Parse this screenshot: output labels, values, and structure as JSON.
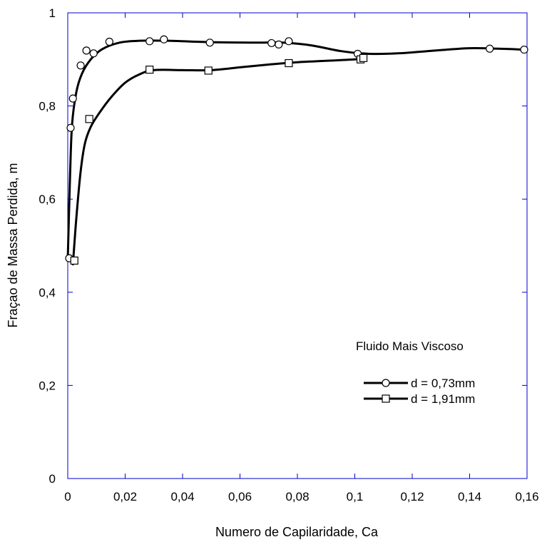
{
  "chart_data": {
    "type": "scatter",
    "xlabel": "Numero de Capilaridade, Ca",
    "ylabel": "Fraçao de Massa Perdida, m",
    "xlim": [
      0,
      0.16
    ],
    "ylim": [
      0,
      1
    ],
    "x_ticks": [
      0,
      0.02,
      0.04,
      0.06,
      0.08,
      0.1,
      0.12,
      0.14,
      0.16
    ],
    "x_tick_labels": [
      "0",
      "0,02",
      "0,04",
      "0,06",
      "0,08",
      "0,1",
      "0,12",
      "0,14",
      "0,16"
    ],
    "y_ticks": [
      0,
      0.2,
      0.4,
      0.6,
      0.8,
      1
    ],
    "y_tick_labels": [
      "0",
      "0,2",
      "0,4",
      "0,6",
      "0,8",
      "1"
    ],
    "grid": false,
    "legend_title": "Fluido Mais Viscoso",
    "legend_position": "lower-right",
    "series": [
      {
        "name": "d = 0,73mm",
        "marker": "circle",
        "color": "#000000",
        "points": [
          [
            0.0005,
            0.473
          ],
          [
            0.001,
            0.753
          ],
          [
            0.0018,
            0.816
          ],
          [
            0.0045,
            0.887
          ],
          [
            0.0065,
            0.919
          ],
          [
            0.009,
            0.913
          ],
          [
            0.0145,
            0.938
          ],
          [
            0.0285,
            0.939
          ],
          [
            0.0335,
            0.943
          ],
          [
            0.0495,
            0.936
          ],
          [
            0.071,
            0.935
          ],
          [
            0.0735,
            0.932
          ],
          [
            0.077,
            0.939
          ],
          [
            0.101,
            0.912
          ],
          [
            0.147,
            0.923
          ],
          [
            0.159,
            0.921
          ]
        ],
        "curve": [
          [
            0,
            0.47
          ],
          [
            0.0008,
            0.65
          ],
          [
            0.0015,
            0.76
          ],
          [
            0.003,
            0.83
          ],
          [
            0.005,
            0.87
          ],
          [
            0.008,
            0.9
          ],
          [
            0.012,
            0.922
          ],
          [
            0.018,
            0.936
          ],
          [
            0.025,
            0.94
          ],
          [
            0.035,
            0.94
          ],
          [
            0.05,
            0.937
          ],
          [
            0.065,
            0.936
          ],
          [
            0.075,
            0.936
          ],
          [
            0.085,
            0.93
          ],
          [
            0.095,
            0.918
          ],
          [
            0.105,
            0.912
          ],
          [
            0.115,
            0.913
          ],
          [
            0.13,
            0.92
          ],
          [
            0.14,
            0.924
          ],
          [
            0.15,
            0.923
          ],
          [
            0.159,
            0.921
          ]
        ]
      },
      {
        "name": "d = 1,91mm",
        "marker": "square",
        "color": "#000000",
        "points": [
          [
            0.0023,
            0.468
          ],
          [
            0.0075,
            0.772
          ],
          [
            0.0285,
            0.878
          ],
          [
            0.049,
            0.876
          ],
          [
            0.077,
            0.892
          ],
          [
            0.102,
            0.9
          ],
          [
            0.103,
            0.903
          ]
        ],
        "curve": [
          [
            0.0018,
            0.46
          ],
          [
            0.003,
            0.56
          ],
          [
            0.0045,
            0.66
          ],
          [
            0.006,
            0.72
          ],
          [
            0.008,
            0.755
          ],
          [
            0.011,
            0.785
          ],
          [
            0.015,
            0.818
          ],
          [
            0.02,
            0.85
          ],
          [
            0.025,
            0.868
          ],
          [
            0.03,
            0.877
          ],
          [
            0.04,
            0.877
          ],
          [
            0.05,
            0.877
          ],
          [
            0.06,
            0.883
          ],
          [
            0.07,
            0.889
          ],
          [
            0.08,
            0.894
          ],
          [
            0.09,
            0.897
          ],
          [
            0.1,
            0.9
          ],
          [
            0.103,
            0.903
          ]
        ]
      }
    ]
  }
}
